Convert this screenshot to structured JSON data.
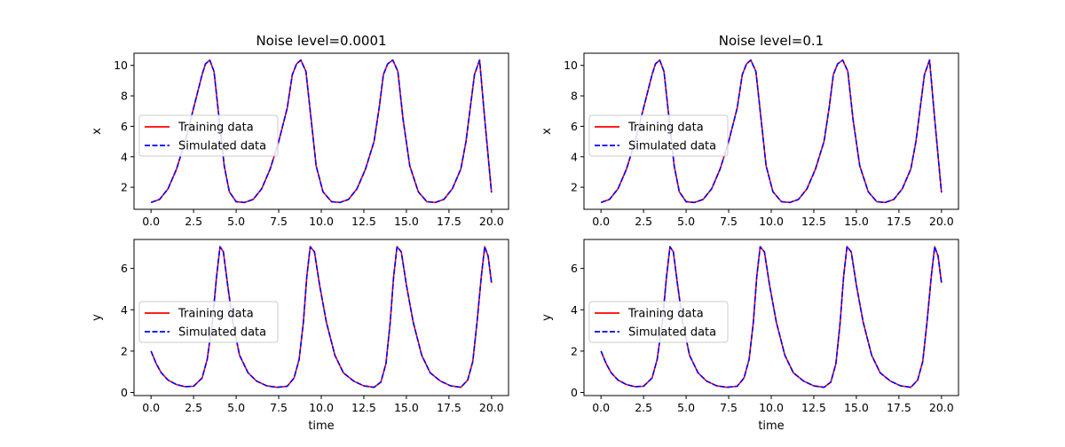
{
  "chart_data": [
    {
      "type": "line",
      "title": "Noise level=0.0001",
      "xlabel": "",
      "ylabel": "x",
      "xlim": [
        -1.0,
        21.0
      ],
      "ylim": [
        0.55,
        10.8
      ],
      "xticks": [
        0.0,
        2.5,
        5.0,
        7.5,
        10.0,
        12.5,
        15.0,
        17.5,
        20.0
      ],
      "xtick_labels": [
        "0.0",
        "2.5",
        "5.0",
        "7.5",
        "10.0",
        "12.5",
        "15.0",
        "17.5",
        "20.0"
      ],
      "yticks": [
        2,
        4,
        6,
        8,
        10
      ],
      "ytick_labels": [
        "2",
        "4",
        "6",
        "8",
        "10"
      ],
      "legend": "center-left",
      "grid": false,
      "x": [
        0.0,
        0.5,
        1.0,
        1.5,
        2.0,
        2.5,
        3.0,
        3.2,
        3.45,
        3.7,
        4.0,
        4.3,
        4.6,
        5.0,
        5.5,
        6.0,
        6.5,
        7.0,
        7.5,
        8.0,
        8.3,
        8.55,
        8.8,
        9.1,
        9.4,
        9.7,
        10.1,
        10.6,
        11.1,
        11.6,
        12.1,
        12.6,
        13.1,
        13.4,
        13.65,
        13.9,
        14.2,
        14.5,
        14.8,
        15.2,
        15.7,
        16.2,
        16.7,
        17.2,
        17.7,
        18.2,
        18.5,
        18.75,
        19.0,
        19.3,
        19.6,
        20.0
      ],
      "series": [
        {
          "name": "Training data",
          "color": "#ff0000",
          "style": "solid",
          "values": [
            1.0,
            1.2,
            1.9,
            3.2,
            5.0,
            7.2,
            9.4,
            10.1,
            10.35,
            9.6,
            6.5,
            3.4,
            1.7,
            1.05,
            1.0,
            1.2,
            1.9,
            3.2,
            5.0,
            7.2,
            9.4,
            10.1,
            10.35,
            9.6,
            6.5,
            3.4,
            1.7,
            1.05,
            1.0,
            1.2,
            1.9,
            3.2,
            5.0,
            7.2,
            9.4,
            10.1,
            10.35,
            9.6,
            6.5,
            3.4,
            1.7,
            1.05,
            1.0,
            1.2,
            1.9,
            3.2,
            5.0,
            7.2,
            9.4,
            10.35,
            6.5,
            1.65
          ]
        },
        {
          "name": "Simulated data",
          "color": "#0000ff",
          "style": "dashed",
          "values": [
            1.0,
            1.2,
            1.9,
            3.2,
            5.0,
            7.2,
            9.4,
            10.1,
            10.35,
            9.6,
            6.5,
            3.4,
            1.7,
            1.05,
            1.0,
            1.2,
            1.9,
            3.2,
            5.0,
            7.2,
            9.4,
            10.1,
            10.35,
            9.6,
            6.5,
            3.4,
            1.7,
            1.05,
            1.0,
            1.2,
            1.9,
            3.2,
            5.0,
            7.2,
            9.4,
            10.1,
            10.35,
            9.6,
            6.5,
            3.4,
            1.7,
            1.05,
            1.0,
            1.2,
            1.9,
            3.2,
            5.0,
            7.2,
            9.4,
            10.35,
            6.5,
            1.65
          ]
        }
      ]
    },
    {
      "type": "line",
      "title": "Noise level=0.1",
      "xlabel": "",
      "ylabel": "x",
      "xlim": [
        -1.0,
        21.0
      ],
      "ylim": [
        0.55,
        10.8
      ],
      "xticks": [
        0.0,
        2.5,
        5.0,
        7.5,
        10.0,
        12.5,
        15.0,
        17.5,
        20.0
      ],
      "xtick_labels": [
        "0.0",
        "2.5",
        "5.0",
        "7.5",
        "10.0",
        "12.5",
        "15.0",
        "17.5",
        "20.0"
      ],
      "yticks": [
        2,
        4,
        6,
        8,
        10
      ],
      "ytick_labels": [
        "2",
        "4",
        "6",
        "8",
        "10"
      ],
      "legend": "center-left",
      "grid": false,
      "x": [
        0.0,
        0.5,
        1.0,
        1.5,
        2.0,
        2.5,
        3.0,
        3.2,
        3.45,
        3.7,
        4.0,
        4.3,
        4.6,
        5.0,
        5.5,
        6.0,
        6.5,
        7.0,
        7.5,
        8.0,
        8.3,
        8.55,
        8.8,
        9.1,
        9.4,
        9.7,
        10.1,
        10.6,
        11.1,
        11.6,
        12.1,
        12.6,
        13.1,
        13.4,
        13.65,
        13.9,
        14.2,
        14.5,
        14.8,
        15.2,
        15.7,
        16.2,
        16.7,
        17.2,
        17.7,
        18.2,
        18.5,
        18.75,
        19.0,
        19.3,
        19.6,
        20.0
      ],
      "series": [
        {
          "name": "Training data",
          "color": "#ff0000",
          "style": "solid",
          "values": [
            1.0,
            1.2,
            1.9,
            3.2,
            5.0,
            7.2,
            9.4,
            10.1,
            10.35,
            9.6,
            6.5,
            3.4,
            1.7,
            1.05,
            1.0,
            1.2,
            1.9,
            3.2,
            5.0,
            7.2,
            9.4,
            10.1,
            10.35,
            9.6,
            6.5,
            3.4,
            1.7,
            1.05,
            1.0,
            1.2,
            1.9,
            3.2,
            5.0,
            7.2,
            9.4,
            10.1,
            10.35,
            9.6,
            6.5,
            3.4,
            1.7,
            1.05,
            1.0,
            1.2,
            1.9,
            3.2,
            5.0,
            7.2,
            9.4,
            10.35,
            6.5,
            1.65
          ]
        },
        {
          "name": "Simulated data",
          "color": "#0000ff",
          "style": "dashed",
          "values": [
            1.0,
            1.2,
            1.9,
            3.2,
            5.0,
            7.2,
            9.4,
            10.1,
            10.35,
            9.6,
            6.5,
            3.4,
            1.7,
            1.05,
            1.0,
            1.2,
            1.9,
            3.2,
            5.0,
            7.2,
            9.4,
            10.1,
            10.35,
            9.6,
            6.5,
            3.4,
            1.7,
            1.05,
            1.0,
            1.2,
            1.9,
            3.2,
            5.0,
            7.2,
            9.4,
            10.1,
            10.35,
            9.6,
            6.5,
            3.4,
            1.7,
            1.05,
            1.0,
            1.2,
            1.9,
            3.2,
            5.0,
            7.2,
            9.4,
            10.35,
            6.5,
            1.65
          ]
        }
      ]
    },
    {
      "type": "line",
      "title": "",
      "xlabel": "time",
      "ylabel": "y",
      "xlim": [
        -1.0,
        21.0
      ],
      "ylim": [
        -0.15,
        7.4
      ],
      "xticks": [
        0.0,
        2.5,
        5.0,
        7.5,
        10.0,
        12.5,
        15.0,
        17.5,
        20.0
      ],
      "xtick_labels": [
        "0.0",
        "2.5",
        "5.0",
        "7.5",
        "10.0",
        "12.5",
        "15.0",
        "17.5",
        "20.0"
      ],
      "yticks": [
        0,
        2,
        4,
        6
      ],
      "ytick_labels": [
        "0",
        "2",
        "4",
        "6"
      ],
      "legend": "center-left",
      "grid": false,
      "x": [
        0.0,
        0.3,
        0.6,
        1.0,
        1.5,
        2.0,
        2.5,
        3.0,
        3.3,
        3.6,
        3.85,
        4.05,
        4.25,
        4.5,
        4.8,
        5.2,
        5.7,
        6.2,
        6.8,
        7.4,
        8.0,
        8.4,
        8.7,
        8.95,
        9.15,
        9.35,
        9.6,
        9.9,
        10.3,
        10.8,
        11.3,
        11.9,
        12.5,
        13.1,
        13.5,
        13.8,
        14.05,
        14.25,
        14.45,
        14.7,
        15.0,
        15.4,
        15.9,
        16.4,
        17.0,
        17.6,
        18.2,
        18.6,
        18.9,
        19.15,
        19.4,
        19.6,
        19.8,
        20.0
      ],
      "series": [
        {
          "name": "Training data",
          "color": "#ff0000",
          "style": "solid",
          "values": [
            2.0,
            1.4,
            0.95,
            0.6,
            0.38,
            0.28,
            0.3,
            0.7,
            1.6,
            3.4,
            5.6,
            7.05,
            6.8,
            5.2,
            3.4,
            1.8,
            0.95,
            0.55,
            0.32,
            0.25,
            0.3,
            0.7,
            1.6,
            3.4,
            5.6,
            7.05,
            6.8,
            5.2,
            3.4,
            1.8,
            0.95,
            0.55,
            0.32,
            0.25,
            0.5,
            1.4,
            3.4,
            5.6,
            7.05,
            6.8,
            5.2,
            3.4,
            1.8,
            0.95,
            0.55,
            0.32,
            0.25,
            0.6,
            1.5,
            3.4,
            5.6,
            7.05,
            6.6,
            5.3
          ]
        },
        {
          "name": "Simulated data",
          "color": "#0000ff",
          "style": "dashed",
          "values": [
            2.0,
            1.4,
            0.95,
            0.6,
            0.38,
            0.28,
            0.3,
            0.7,
            1.6,
            3.4,
            5.6,
            7.05,
            6.8,
            5.2,
            3.4,
            1.8,
            0.95,
            0.55,
            0.32,
            0.25,
            0.3,
            0.7,
            1.6,
            3.4,
            5.6,
            7.05,
            6.8,
            5.2,
            3.4,
            1.8,
            0.95,
            0.55,
            0.32,
            0.25,
            0.5,
            1.4,
            3.4,
            5.6,
            7.05,
            6.8,
            5.2,
            3.4,
            1.8,
            0.95,
            0.55,
            0.32,
            0.25,
            0.6,
            1.5,
            3.4,
            5.6,
            7.05,
            6.6,
            5.3
          ]
        }
      ]
    },
    {
      "type": "line",
      "title": "",
      "xlabel": "time",
      "ylabel": "y",
      "xlim": [
        -1.0,
        21.0
      ],
      "ylim": [
        -0.15,
        7.4
      ],
      "xticks": [
        0.0,
        2.5,
        5.0,
        7.5,
        10.0,
        12.5,
        15.0,
        17.5,
        20.0
      ],
      "xtick_labels": [
        "0.0",
        "2.5",
        "5.0",
        "7.5",
        "10.0",
        "12.5",
        "15.0",
        "17.5",
        "20.0"
      ],
      "yticks": [
        0,
        2,
        4,
        6
      ],
      "ytick_labels": [
        "0",
        "2",
        "4",
        "6"
      ],
      "legend": "center-left",
      "grid": false,
      "x": [
        0.0,
        0.3,
        0.6,
        1.0,
        1.5,
        2.0,
        2.5,
        3.0,
        3.3,
        3.6,
        3.85,
        4.05,
        4.25,
        4.5,
        4.8,
        5.2,
        5.7,
        6.2,
        6.8,
        7.4,
        8.0,
        8.4,
        8.7,
        8.95,
        9.15,
        9.35,
        9.6,
        9.9,
        10.3,
        10.8,
        11.3,
        11.9,
        12.5,
        13.1,
        13.5,
        13.8,
        14.05,
        14.25,
        14.45,
        14.7,
        15.0,
        15.4,
        15.9,
        16.4,
        17.0,
        17.6,
        18.2,
        18.6,
        18.9,
        19.15,
        19.4,
        19.6,
        19.8,
        20.0
      ],
      "series": [
        {
          "name": "Training data",
          "color": "#ff0000",
          "style": "solid",
          "values": [
            2.0,
            1.4,
            0.95,
            0.6,
            0.38,
            0.28,
            0.3,
            0.7,
            1.6,
            3.4,
            5.6,
            7.05,
            6.8,
            5.2,
            3.4,
            1.8,
            0.95,
            0.55,
            0.32,
            0.25,
            0.3,
            0.7,
            1.6,
            3.4,
            5.6,
            7.05,
            6.8,
            5.2,
            3.4,
            1.8,
            0.95,
            0.55,
            0.32,
            0.25,
            0.5,
            1.4,
            3.4,
            5.6,
            7.05,
            6.8,
            5.2,
            3.4,
            1.8,
            0.95,
            0.55,
            0.32,
            0.25,
            0.6,
            1.5,
            3.4,
            5.6,
            7.05,
            6.6,
            5.3
          ]
        },
        {
          "name": "Simulated data",
          "color": "#0000ff",
          "style": "dashed",
          "values": [
            2.0,
            1.4,
            0.95,
            0.6,
            0.38,
            0.28,
            0.3,
            0.7,
            1.6,
            3.4,
            5.6,
            7.05,
            6.8,
            5.2,
            3.4,
            1.8,
            0.95,
            0.55,
            0.32,
            0.25,
            0.3,
            0.7,
            1.6,
            3.4,
            5.6,
            7.05,
            6.8,
            5.2,
            3.4,
            1.8,
            0.95,
            0.55,
            0.32,
            0.25,
            0.5,
            1.4,
            3.4,
            5.6,
            7.05,
            6.8,
            5.2,
            3.4,
            1.8,
            0.95,
            0.55,
            0.32,
            0.25,
            0.6,
            1.5,
            3.4,
            5.6,
            7.05,
            6.6,
            5.3
          ]
        }
      ]
    }
  ]
}
